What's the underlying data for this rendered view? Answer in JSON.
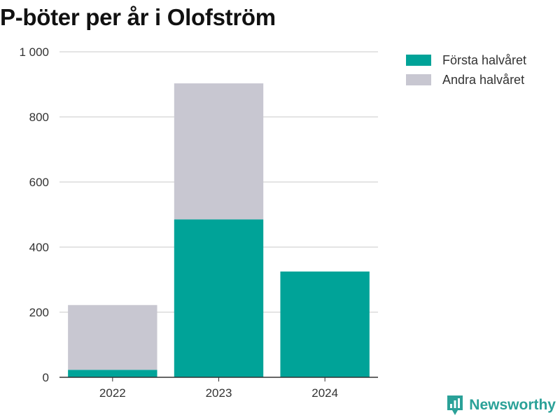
{
  "title": "P-böter per år i Olofström",
  "brand": {
    "name": "Newsworthy",
    "icon": "bar-chart-logo-icon",
    "color": "#2aa198"
  },
  "chart_data": {
    "type": "bar",
    "stacked": true,
    "categories": [
      "2022",
      "2023",
      "2024"
    ],
    "series": [
      {
        "name": "Första halvåret",
        "color": "#00a398",
        "values": [
          23,
          485,
          325
        ]
      },
      {
        "name": "Andra halvåret",
        "color": "#c8c7d1",
        "values": [
          199,
          418,
          0
        ]
      }
    ],
    "ylim": [
      0,
      1000
    ],
    "yticks": [
      0,
      200,
      400,
      600,
      800,
      1000
    ],
    "ytick_labels": [
      "0",
      "200",
      "400",
      "600",
      "800",
      "1 000"
    ],
    "xlabel": "",
    "ylabel": "",
    "grid": true,
    "legend_position": "top-right"
  }
}
